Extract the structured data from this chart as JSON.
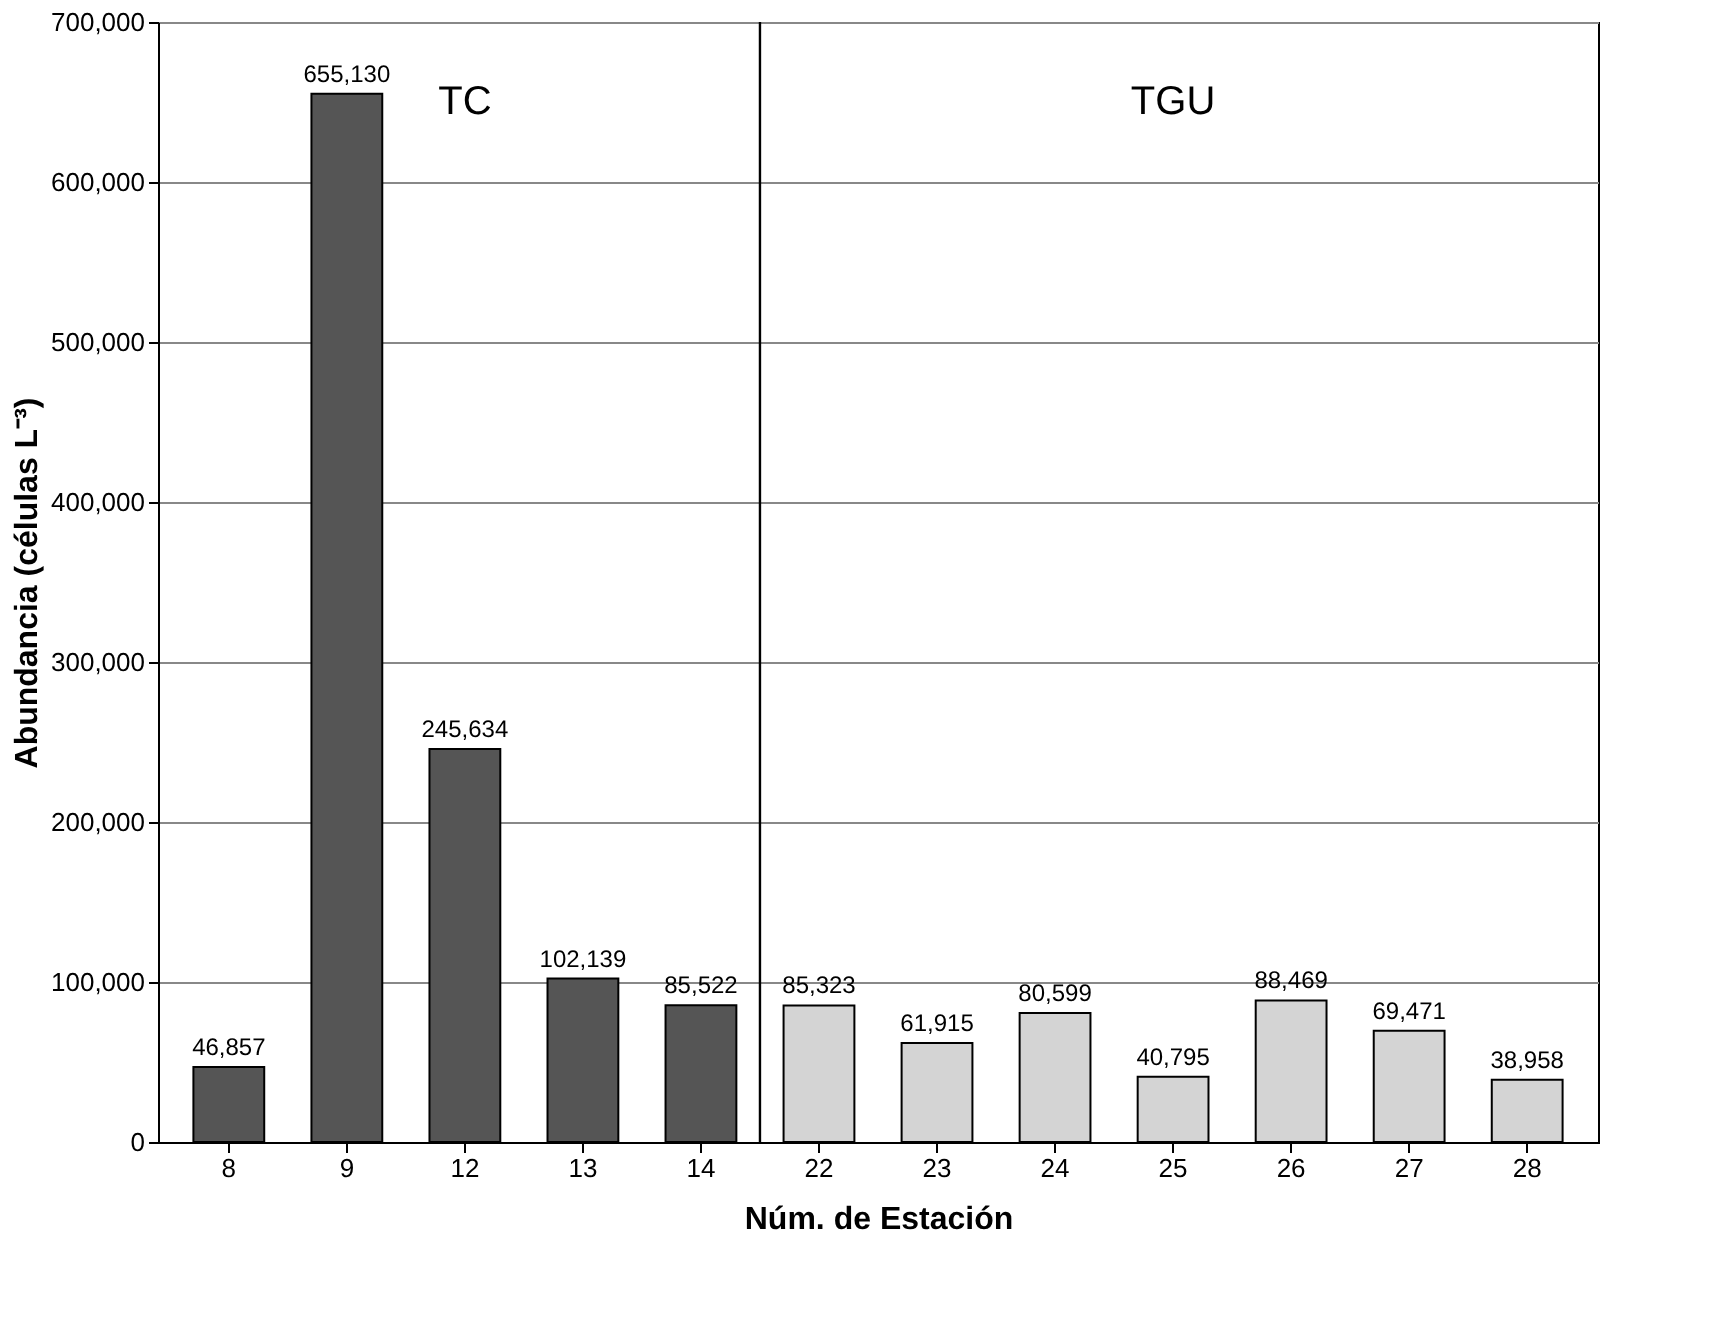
{
  "chart_data": {
    "type": "bar",
    "xlabel": "Núm. de Estación",
    "ylabel": "Abundancia (células L⁻³)",
    "categories": [
      "8",
      "9",
      "12",
      "13",
      "14",
      "22",
      "23",
      "24",
      "25",
      "26",
      "27",
      "28"
    ],
    "series": [
      {
        "color": "#555555",
        "values": [
          46857,
          655130,
          245634,
          102139,
          85522,
          null,
          null,
          null,
          null,
          null,
          null,
          null
        ],
        "value_labels": [
          "46,857",
          "655,130",
          "245,634",
          "102,139",
          "85,522",
          null,
          null,
          null,
          null,
          null,
          null,
          null
        ]
      },
      {
        "color": "#d4d4d4",
        "values": [
          null,
          null,
          null,
          null,
          null,
          85323,
          61915,
          80599,
          40795,
          88469,
          69471,
          38958
        ],
        "value_labels": [
          null,
          null,
          null,
          null,
          null,
          "85,323",
          "61,915",
          "80,599",
          "40,795",
          "88,469",
          "69,471",
          "38,958"
        ]
      }
    ],
    "ylim": [
      0,
      700000
    ],
    "yticks": [
      0,
      {
        "value": 100000,
        "label": "100,000"
      },
      {
        "value": 200000,
        "label": "200,000"
      },
      {
        "value": 300000,
        "label": "300,000"
      },
      {
        "value": 400000,
        "label": "400,000"
      },
      {
        "value": 500000,
        "label": "500,000"
      },
      {
        "value": 600000,
        "label": "600,000"
      },
      {
        "value": 700000,
        "label": "700,000"
      }
    ],
    "annotations": [
      "TC",
      "TGU"
    ],
    "ref_lines": [
      {
        "axis": "x",
        "value": "22",
        "color": "#000000"
      }
    ],
    "grid": "y"
  }
}
